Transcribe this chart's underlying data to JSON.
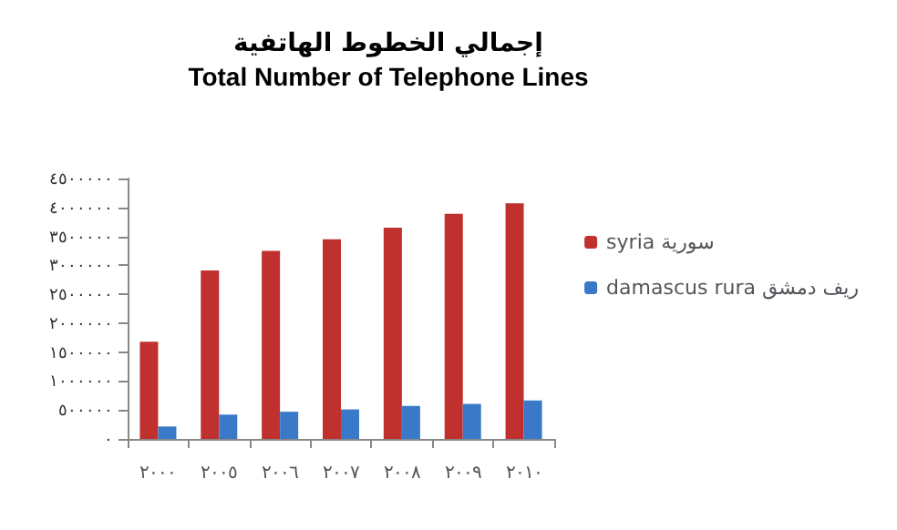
{
  "chart_data": {
    "type": "bar",
    "title": "إجمالي الخطوط الهاتفية",
    "subtitle": "Total Number of Telephone Lines",
    "categories": [
      "٢٠٠٠",
      "٢٠٠٥",
      "٢٠٠٦",
      "٢٠٠٧",
      "٢٠٠٨",
      "٢٠٠٩",
      "٢٠١٠"
    ],
    "series": [
      {
        "name": "syria سورية",
        "color": "#c0302f",
        "values": [
          1680000,
          2910000,
          3250000,
          3450000,
          3650000,
          3890000,
          4070000
        ]
      },
      {
        "name": "damascus rura ريف دمشق",
        "color": "#3a78c8",
        "values": [
          215000,
          420000,
          470000,
          510000,
          570000,
          605000,
          665000
        ]
      }
    ],
    "ylim": [
      0,
      4500000
    ],
    "yticks": [
      {
        "value": 0,
        "label": "٠"
      },
      {
        "value": 500000,
        "label": "٥٠٠٠٠٠"
      },
      {
        "value": 1000000,
        "label": "١٠٠٠٠٠٠"
      },
      {
        "value": 1500000,
        "label": "١٥٠٠٠٠٠"
      },
      {
        "value": 2000000,
        "label": "٢٠٠٠٠٠٠"
      },
      {
        "value": 2500000,
        "label": "٢٥٠٠٠٠٠"
      },
      {
        "value": 3000000,
        "label": "٣٠٠٠٠٠٠"
      },
      {
        "value": 3500000,
        "label": "٣٥٠٠٠٠٠"
      },
      {
        "value": 4000000,
        "label": "٤٠٠٠٠٠٠"
      },
      {
        "value": 4500000,
        "label": "٤٥٠٠٠٠٠"
      }
    ],
    "grid": false,
    "legend": "right"
  }
}
